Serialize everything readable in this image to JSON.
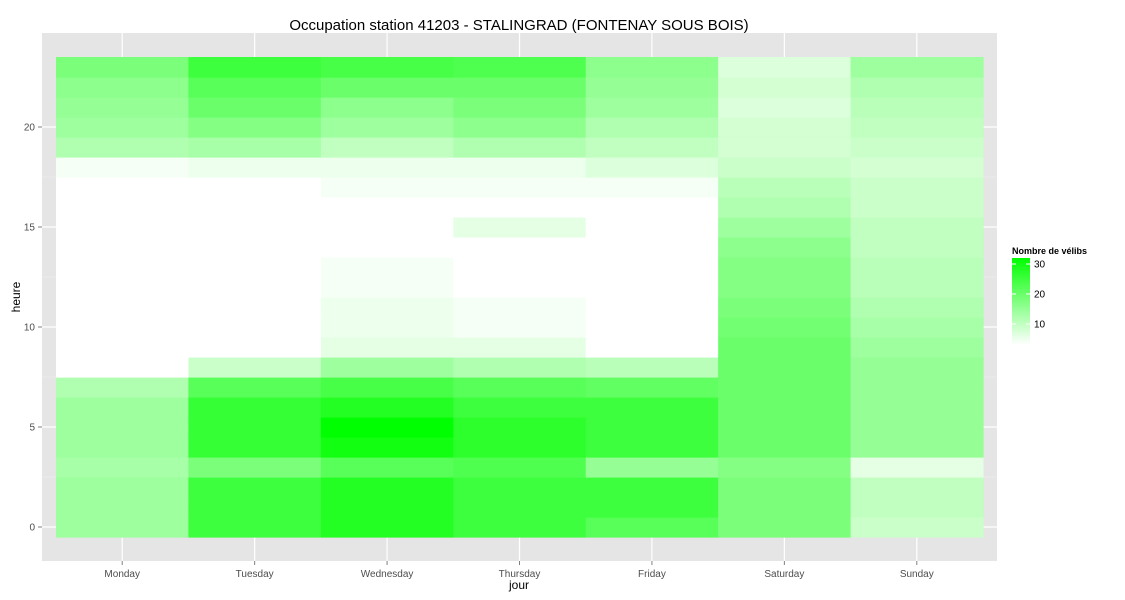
{
  "chart_data": {
    "type": "heatmap",
    "title": "Occupation station 41203 - STALINGRAD (FONTENAY SOUS BOIS)",
    "xlabel": "jour",
    "ylabel": "heure",
    "x_categories": [
      "Monday",
      "Tuesday",
      "Wednesday",
      "Thursday",
      "Friday",
      "Saturday",
      "Sunday"
    ],
    "y_values": [
      0,
      1,
      2,
      3,
      4,
      5,
      6,
      7,
      8,
      9,
      10,
      11,
      12,
      13,
      14,
      15,
      16,
      17,
      18,
      19,
      20,
      21,
      22,
      23
    ],
    "y_ticks": [
      0,
      5,
      10,
      15,
      20
    ],
    "ylim": [
      -0.5,
      23.5
    ],
    "grid": true,
    "legend": {
      "title": "Nombre de vélibs",
      "ticks": [
        10,
        20,
        30
      ],
      "range": [
        3,
        32
      ],
      "low_color": "#ffffff",
      "high_color": "#00ff00",
      "placement": "right"
    },
    "series": [
      {
        "day": "Monday",
        "values": [
          14,
          14,
          14,
          13,
          14,
          14,
          14,
          12,
          2,
          1,
          1,
          1,
          1,
          1,
          1,
          0,
          0,
          1,
          4,
          12,
          14,
          15,
          16,
          18
        ]
      },
      {
        "day": "Tuesday",
        "values": [
          25,
          25,
          25,
          18,
          26,
          26,
          26,
          22,
          9,
          3,
          3,
          3,
          3,
          3,
          3,
          3,
          3,
          3,
          5,
          13,
          17,
          20,
          22,
          25
        ]
      },
      {
        "day": "Wednesday",
        "values": [
          28,
          28,
          28,
          22,
          30,
          32,
          28,
          24,
          14,
          6,
          5,
          5,
          4,
          4,
          3,
          3,
          3,
          4,
          5,
          10,
          14,
          16,
          20,
          24
        ]
      },
      {
        "day": "Thursday",
        "values": [
          25,
          25,
          25,
          23,
          27,
          27,
          25,
          22,
          12,
          6,
          4,
          4,
          3,
          3,
          3,
          6,
          3,
          4,
          5,
          12,
          16,
          18,
          20,
          23
        ]
      },
      {
        "day": "Friday",
        "values": [
          22,
          25,
          25,
          15,
          25,
          25,
          25,
          21,
          11,
          2,
          2,
          2,
          2,
          3,
          3,
          3,
          3,
          4,
          7,
          10,
          12,
          14,
          15,
          16
        ]
      },
      {
        "day": "Saturday",
        "values": [
          18,
          18,
          18,
          17,
          20,
          20,
          20,
          20,
          20,
          20,
          19,
          18,
          17,
          17,
          16,
          14,
          12,
          11,
          9,
          8,
          8,
          7,
          8,
          7
        ]
      },
      {
        "day": "Sunday",
        "values": [
          9,
          10,
          10,
          6,
          15,
          15,
          15,
          15,
          15,
          14,
          13,
          12,
          11,
          11,
          10,
          10,
          9,
          9,
          8,
          9,
          10,
          11,
          12,
          14
        ]
      }
    ]
  }
}
